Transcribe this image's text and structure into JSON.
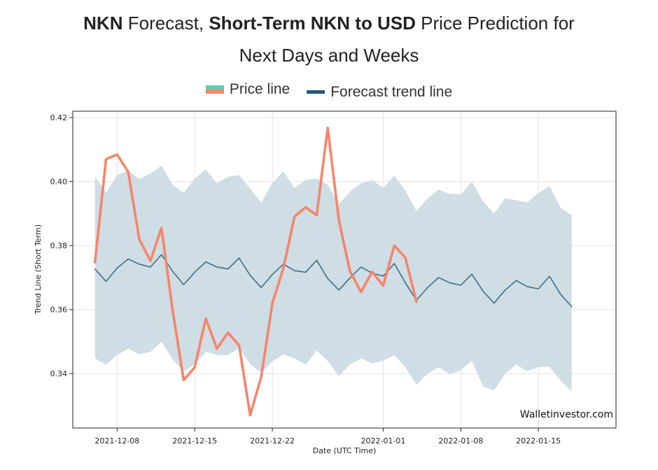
{
  "header": {
    "title_parts": [
      {
        "text": "NKN",
        "bold": true
      },
      {
        "text": " Forecast, ",
        "bold": false
      },
      {
        "text": "Short-Term NKN to USD",
        "bold": true
      },
      {
        "text": " Price Prediction for",
        "bold": false
      },
      {
        "text": "Next Days and Weeks",
        "bold": false,
        "break_before": true
      }
    ]
  },
  "legend": [
    {
      "label": "Price line",
      "color": "#f4866c",
      "accent": "#5ad2b4"
    },
    {
      "label": "Forecast trend line",
      "color": "#1f5a80"
    }
  ],
  "watermark": "Walletinvestor.com",
  "colors": {
    "band": "#ccdbe3",
    "trend": "#3f6f8e",
    "price": "#f4866c",
    "grid": "#e3e3e3"
  },
  "chart_data": {
    "type": "line",
    "xlabel": "Date (UTC Time)",
    "ylabel": "Trend Line (Short Term)",
    "x_start": "2021-12-06",
    "xlim": [
      "2021-12-04",
      "2022-01-22"
    ],
    "ylim": [
      0.323,
      0.422
    ],
    "yticks": [
      "0.34",
      "0.36",
      "0.38",
      "0.40",
      "0.42"
    ],
    "xticks": [
      "2021-12-08",
      "2021-12-15",
      "2021-12-22",
      "2022-01-01",
      "2022-01-08",
      "2022-01-15"
    ],
    "grid": true,
    "legend_position": "top-center",
    "series": [
      {
        "name": "Forecast trend line",
        "style": "line",
        "values": [
          0.3727,
          0.3688,
          0.373,
          0.3758,
          0.3742,
          0.3733,
          0.3772,
          0.372,
          0.3678,
          0.3717,
          0.3749,
          0.3733,
          0.3727,
          0.3761,
          0.3707,
          0.3669,
          0.371,
          0.3742,
          0.3722,
          0.3717,
          0.3754,
          0.3697,
          0.3661,
          0.3699,
          0.3733,
          0.3714,
          0.3705,
          0.3744,
          0.3684,
          0.3629,
          0.3669,
          0.37,
          0.3684,
          0.3676,
          0.3711,
          0.3658,
          0.362,
          0.3661,
          0.3691,
          0.3672,
          0.3665,
          0.3704,
          0.3648,
          0.3609
        ]
      },
      {
        "name": "upper band",
        "style": "band-upper",
        "values": [
          0.4015,
          0.3965,
          0.402,
          0.4035,
          0.4008,
          0.4025,
          0.405,
          0.399,
          0.3965,
          0.401,
          0.4038,
          0.3995,
          0.4015,
          0.402,
          0.3978,
          0.3935,
          0.3995,
          0.4032,
          0.398,
          0.4005,
          0.401,
          0.399,
          0.393,
          0.3968,
          0.3995,
          0.4005,
          0.398,
          0.4018,
          0.3972,
          0.3908,
          0.3948,
          0.3975,
          0.3962,
          0.396,
          0.4,
          0.3938,
          0.39,
          0.3948,
          0.3942,
          0.3935,
          0.3965,
          0.3985,
          0.3918,
          0.3895
        ]
      },
      {
        "name": "lower band",
        "style": "band-lower",
        "values": [
          0.3448,
          0.3428,
          0.3458,
          0.3478,
          0.346,
          0.3468,
          0.35,
          0.3445,
          0.3405,
          0.343,
          0.3468,
          0.3458,
          0.3458,
          0.348,
          0.343,
          0.3402,
          0.3438,
          0.346,
          0.3448,
          0.3428,
          0.3472,
          0.344,
          0.3392,
          0.3428,
          0.3448,
          0.3432,
          0.344,
          0.3458,
          0.342,
          0.3365,
          0.34,
          0.342,
          0.3398,
          0.341,
          0.344,
          0.336,
          0.3348,
          0.34,
          0.3428,
          0.3408,
          0.342,
          0.3422,
          0.3378,
          0.3345
        ]
      },
      {
        "name": "Price line",
        "style": "line",
        "values": [
          0.3748,
          0.407,
          0.4085,
          0.403,
          0.382,
          0.3752,
          0.3855,
          0.36,
          0.338,
          0.342,
          0.3572,
          0.3478,
          0.3528,
          0.3488,
          0.327,
          0.339,
          0.362,
          0.373,
          0.389,
          0.392,
          0.3895,
          0.4168,
          0.388,
          0.372,
          0.3655,
          0.3718,
          0.3675,
          0.38,
          0.3762,
          0.3625
        ]
      }
    ]
  }
}
